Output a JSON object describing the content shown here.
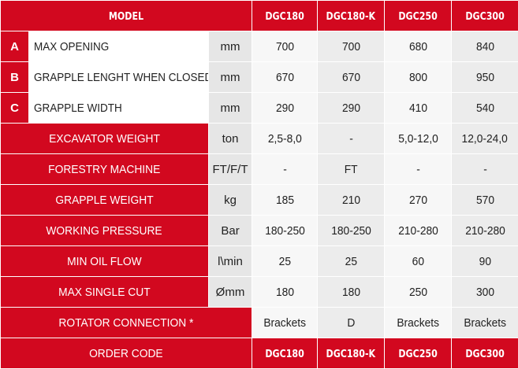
{
  "header": {
    "model_label": "MODEL",
    "models": [
      "DGC180",
      "DGC180-K",
      "DGC250",
      "DGC300"
    ]
  },
  "rows": [
    {
      "letter": "A",
      "label": "MAX OPENING",
      "unit": "mm",
      "values": [
        "700",
        "700",
        "680",
        "840"
      ]
    },
    {
      "letter": "B",
      "label": "GRAPPLE LENGHT WHEN CLOSED",
      "unit": "mm",
      "values": [
        "670",
        "670",
        "800",
        "950"
      ]
    },
    {
      "letter": "C",
      "label": "GRAPPLE WIDTH",
      "unit": "mm",
      "values": [
        "290",
        "290",
        "410",
        "540"
      ]
    },
    {
      "label": "EXCAVATOR WEIGHT",
      "unit": "ton",
      "values": [
        "2,5-8,0",
        "-",
        "5,0-12,0",
        "12,0-24,0"
      ]
    },
    {
      "label": "FORESTRY MACHINE",
      "unit": "FT/F/T",
      "values": [
        "-",
        "FT",
        "-",
        "-"
      ]
    },
    {
      "label": "GRAPPLE WEIGHT",
      "unit": "kg",
      "values": [
        "185",
        "210",
        "270",
        "570"
      ]
    },
    {
      "label": "WORKING PRESSURE",
      "unit": "Bar",
      "values": [
        "180-250",
        "180-250",
        "210-280",
        "210-280"
      ]
    },
    {
      "label": "MIN OIL FLOW",
      "unit": "l\\min",
      "values": [
        "25",
        "25",
        "60",
        "90"
      ]
    },
    {
      "label": "MAX SINGLE CUT",
      "unit": "Ømm",
      "values": [
        "180",
        "180",
        "250",
        "300"
      ]
    },
    {
      "label": "ROTATOR CONNECTION *",
      "values": [
        "Brackets",
        "D",
        "Brackets",
        "Brackets"
      ]
    }
  ],
  "footer": {
    "order_label": "ORDER CODE",
    "codes": [
      "DGC180",
      "DGC180-K",
      "DGC250",
      "DGC300"
    ]
  },
  "colors": {
    "accent_red": "#d2081f",
    "cell_grey_dark": "#ececec",
    "cell_grey_light": "#f7f7f7"
  }
}
